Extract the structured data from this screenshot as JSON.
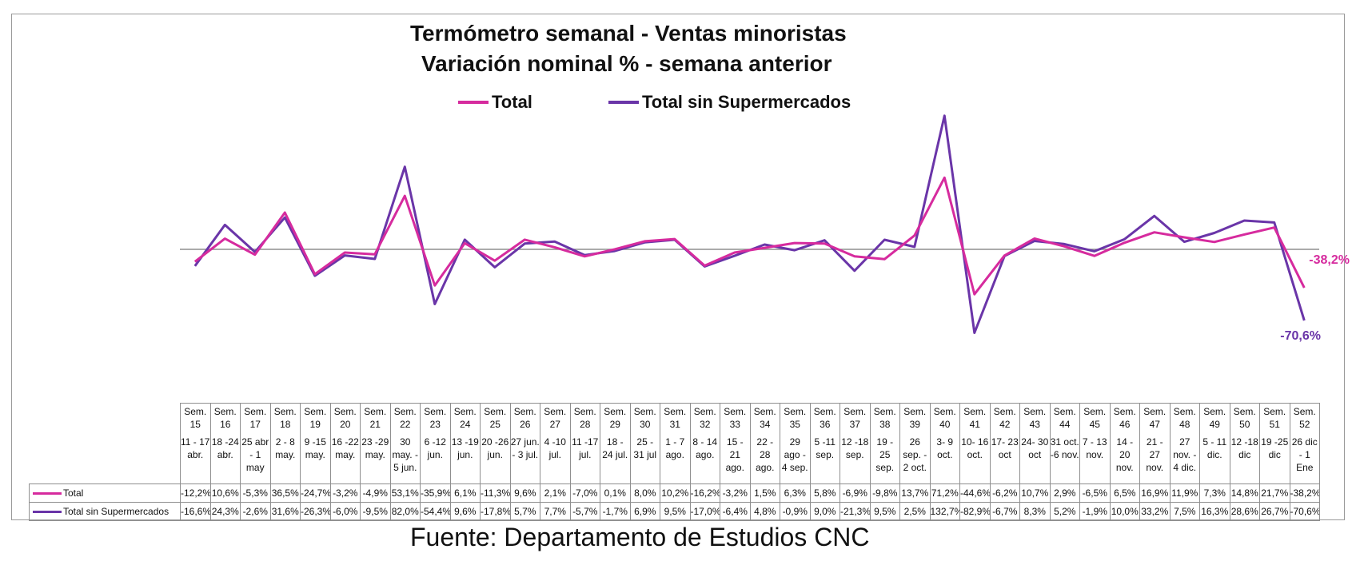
{
  "chart_data": {
    "type": "line",
    "title": "Termómetro semanal - Ventas minoristas",
    "subtitle": "Variación nominal % - semana anterior",
    "categories": [
      {
        "week": "Sem. 15",
        "dates": "11 - 17 abr."
      },
      {
        "week": "Sem. 16",
        "dates": "18 -24 abr."
      },
      {
        "week": "Sem. 17",
        "dates": "25 abr - 1 may"
      },
      {
        "week": "Sem. 18",
        "dates": "2 - 8 may."
      },
      {
        "week": "Sem. 19",
        "dates": "9 -15 may."
      },
      {
        "week": "Sem. 20",
        "dates": "16 -22 may."
      },
      {
        "week": "Sem. 21",
        "dates": "23 -29 may."
      },
      {
        "week": "Sem. 22",
        "dates": "30 may. - 5 jun."
      },
      {
        "week": "Sem. 23",
        "dates": "6 -12 jun."
      },
      {
        "week": "Sem. 24",
        "dates": "13 -19 jun."
      },
      {
        "week": "Sem. 25",
        "dates": "20 -26 jun."
      },
      {
        "week": "Sem. 26",
        "dates": "27 jun. - 3 jul."
      },
      {
        "week": "Sem. 27",
        "dates": "4 -10 jul."
      },
      {
        "week": "Sem. 28",
        "dates": "11 -17 jul."
      },
      {
        "week": "Sem. 29",
        "dates": "18 - 24 jul."
      },
      {
        "week": "Sem. 30",
        "dates": "25 - 31 jul"
      },
      {
        "week": "Sem. 31",
        "dates": "1 - 7 ago."
      },
      {
        "week": "Sem. 32",
        "dates": "8 - 14 ago."
      },
      {
        "week": "Sem. 33",
        "dates": "15 - 21 ago."
      },
      {
        "week": "Sem. 34",
        "dates": "22 - 28 ago."
      },
      {
        "week": "Sem. 35",
        "dates": "29 ago - 4 sep."
      },
      {
        "week": "Sem. 36",
        "dates": "5 -11 sep."
      },
      {
        "week": "Sem. 37",
        "dates": "12 -18 sep."
      },
      {
        "week": "Sem. 38",
        "dates": "19 - 25 sep."
      },
      {
        "week": "Sem. 39",
        "dates": "26 sep. - 2 oct."
      },
      {
        "week": "Sem. 40",
        "dates": "3- 9 oct."
      },
      {
        "week": "Sem. 41",
        "dates": "10- 16 oct."
      },
      {
        "week": "Sem. 42",
        "dates": "17- 23 oct"
      },
      {
        "week": "Sem. 43",
        "dates": "24- 30 oct"
      },
      {
        "week": "Sem. 44",
        "dates": "31 oct. -6 nov."
      },
      {
        "week": "Sem. 45",
        "dates": "7 - 13 nov."
      },
      {
        "week": "Sem. 46",
        "dates": "14 - 20 nov."
      },
      {
        "week": "Sem. 47",
        "dates": "21 - 27 nov."
      },
      {
        "week": "Sem. 48",
        "dates": "27 nov. - 4 dic."
      },
      {
        "week": "Sem. 49",
        "dates": "5 - 11 dic."
      },
      {
        "week": "Sem. 50",
        "dates": "12 -18 dic"
      },
      {
        "week": "Sem. 51",
        "dates": "19 -25 dic"
      },
      {
        "week": "Sem. 52",
        "dates": "26 dic - 1 Ene"
      }
    ],
    "series": [
      {
        "name": "Total",
        "color": "#d62b9e",
        "values": [
          -12.2,
          10.6,
          -5.3,
          36.5,
          -24.7,
          -3.2,
          -4.9,
          53.1,
          -35.9,
          6.1,
          -11.3,
          9.6,
          2.1,
          -7.0,
          0.1,
          8.0,
          10.2,
          -16.2,
          -3.2,
          1.5,
          6.3,
          5.8,
          -6.9,
          -9.8,
          13.7,
          71.2,
          -44.6,
          -6.2,
          10.7,
          2.9,
          -6.5,
          6.5,
          16.9,
          11.9,
          7.3,
          14.8,
          21.7,
          -38.2
        ],
        "labels": [
          "-12,2%",
          "10,6%",
          "-5,3%",
          "36,5%",
          "-24,7%",
          "-3,2%",
          "-4,9%",
          "53,1%",
          "-35,9%",
          "6,1%",
          "-11,3%",
          "9,6%",
          "2,1%",
          "-7,0%",
          "0,1%",
          "8,0%",
          "10,2%",
          "-16,2%",
          "-3,2%",
          "1,5%",
          "6,3%",
          "5,8%",
          "-6,9%",
          "-9,8%",
          "13,7%",
          "71,2%",
          "-44,6%",
          "-6,2%",
          "10,7%",
          "2,9%",
          "-6,5%",
          "6,5%",
          "16,9%",
          "11,9%",
          "7,3%",
          "14,8%",
          "21,7%",
          "-38,2%"
        ],
        "end_label": "-38,2%"
      },
      {
        "name": "Total sin Supermercados",
        "color": "#6a35a8",
        "values": [
          -16.6,
          24.3,
          -2.6,
          31.6,
          -26.3,
          -6.0,
          -9.5,
          82.0,
          -54.4,
          9.6,
          -17.8,
          5.7,
          7.7,
          -5.7,
          -1.7,
          6.9,
          9.5,
          -17.0,
          -6.4,
          4.8,
          -0.9,
          9.0,
          -21.3,
          9.5,
          2.5,
          132.7,
          -82.9,
          -6.7,
          8.3,
          5.2,
          -1.9,
          10.0,
          33.2,
          7.5,
          16.3,
          28.6,
          26.7,
          -70.6
        ],
        "labels": [
          "-16,6%",
          "24,3%",
          "-2,6%",
          "31,6%",
          "-26,3%",
          "-6,0%",
          "-9,5%",
          "82,0%",
          "-54,4%",
          "9,6%",
          "-17,8%",
          "5,7%",
          "7,7%",
          "-5,7%",
          "-1,7%",
          "6,9%",
          "9,5%",
          "-17,0%",
          "-6,4%",
          "4,8%",
          "-0,9%",
          "9,0%",
          "-21,3%",
          "9,5%",
          "2,5%",
          "132,7%",
          "-82,9%",
          "-6,7%",
          "8,3%",
          "5,2%",
          "-1,9%",
          "10,0%",
          "33,2%",
          "7,5%",
          "16,3%",
          "28,6%",
          "26,7%",
          "-70,6%"
        ],
        "end_label": "-70,6%"
      }
    ],
    "ylim": [
      -85,
      135
    ],
    "grid": false,
    "zero_line": true,
    "legend_position": "top-center"
  },
  "source": "Fuente: Departamento de Estudios CNC"
}
